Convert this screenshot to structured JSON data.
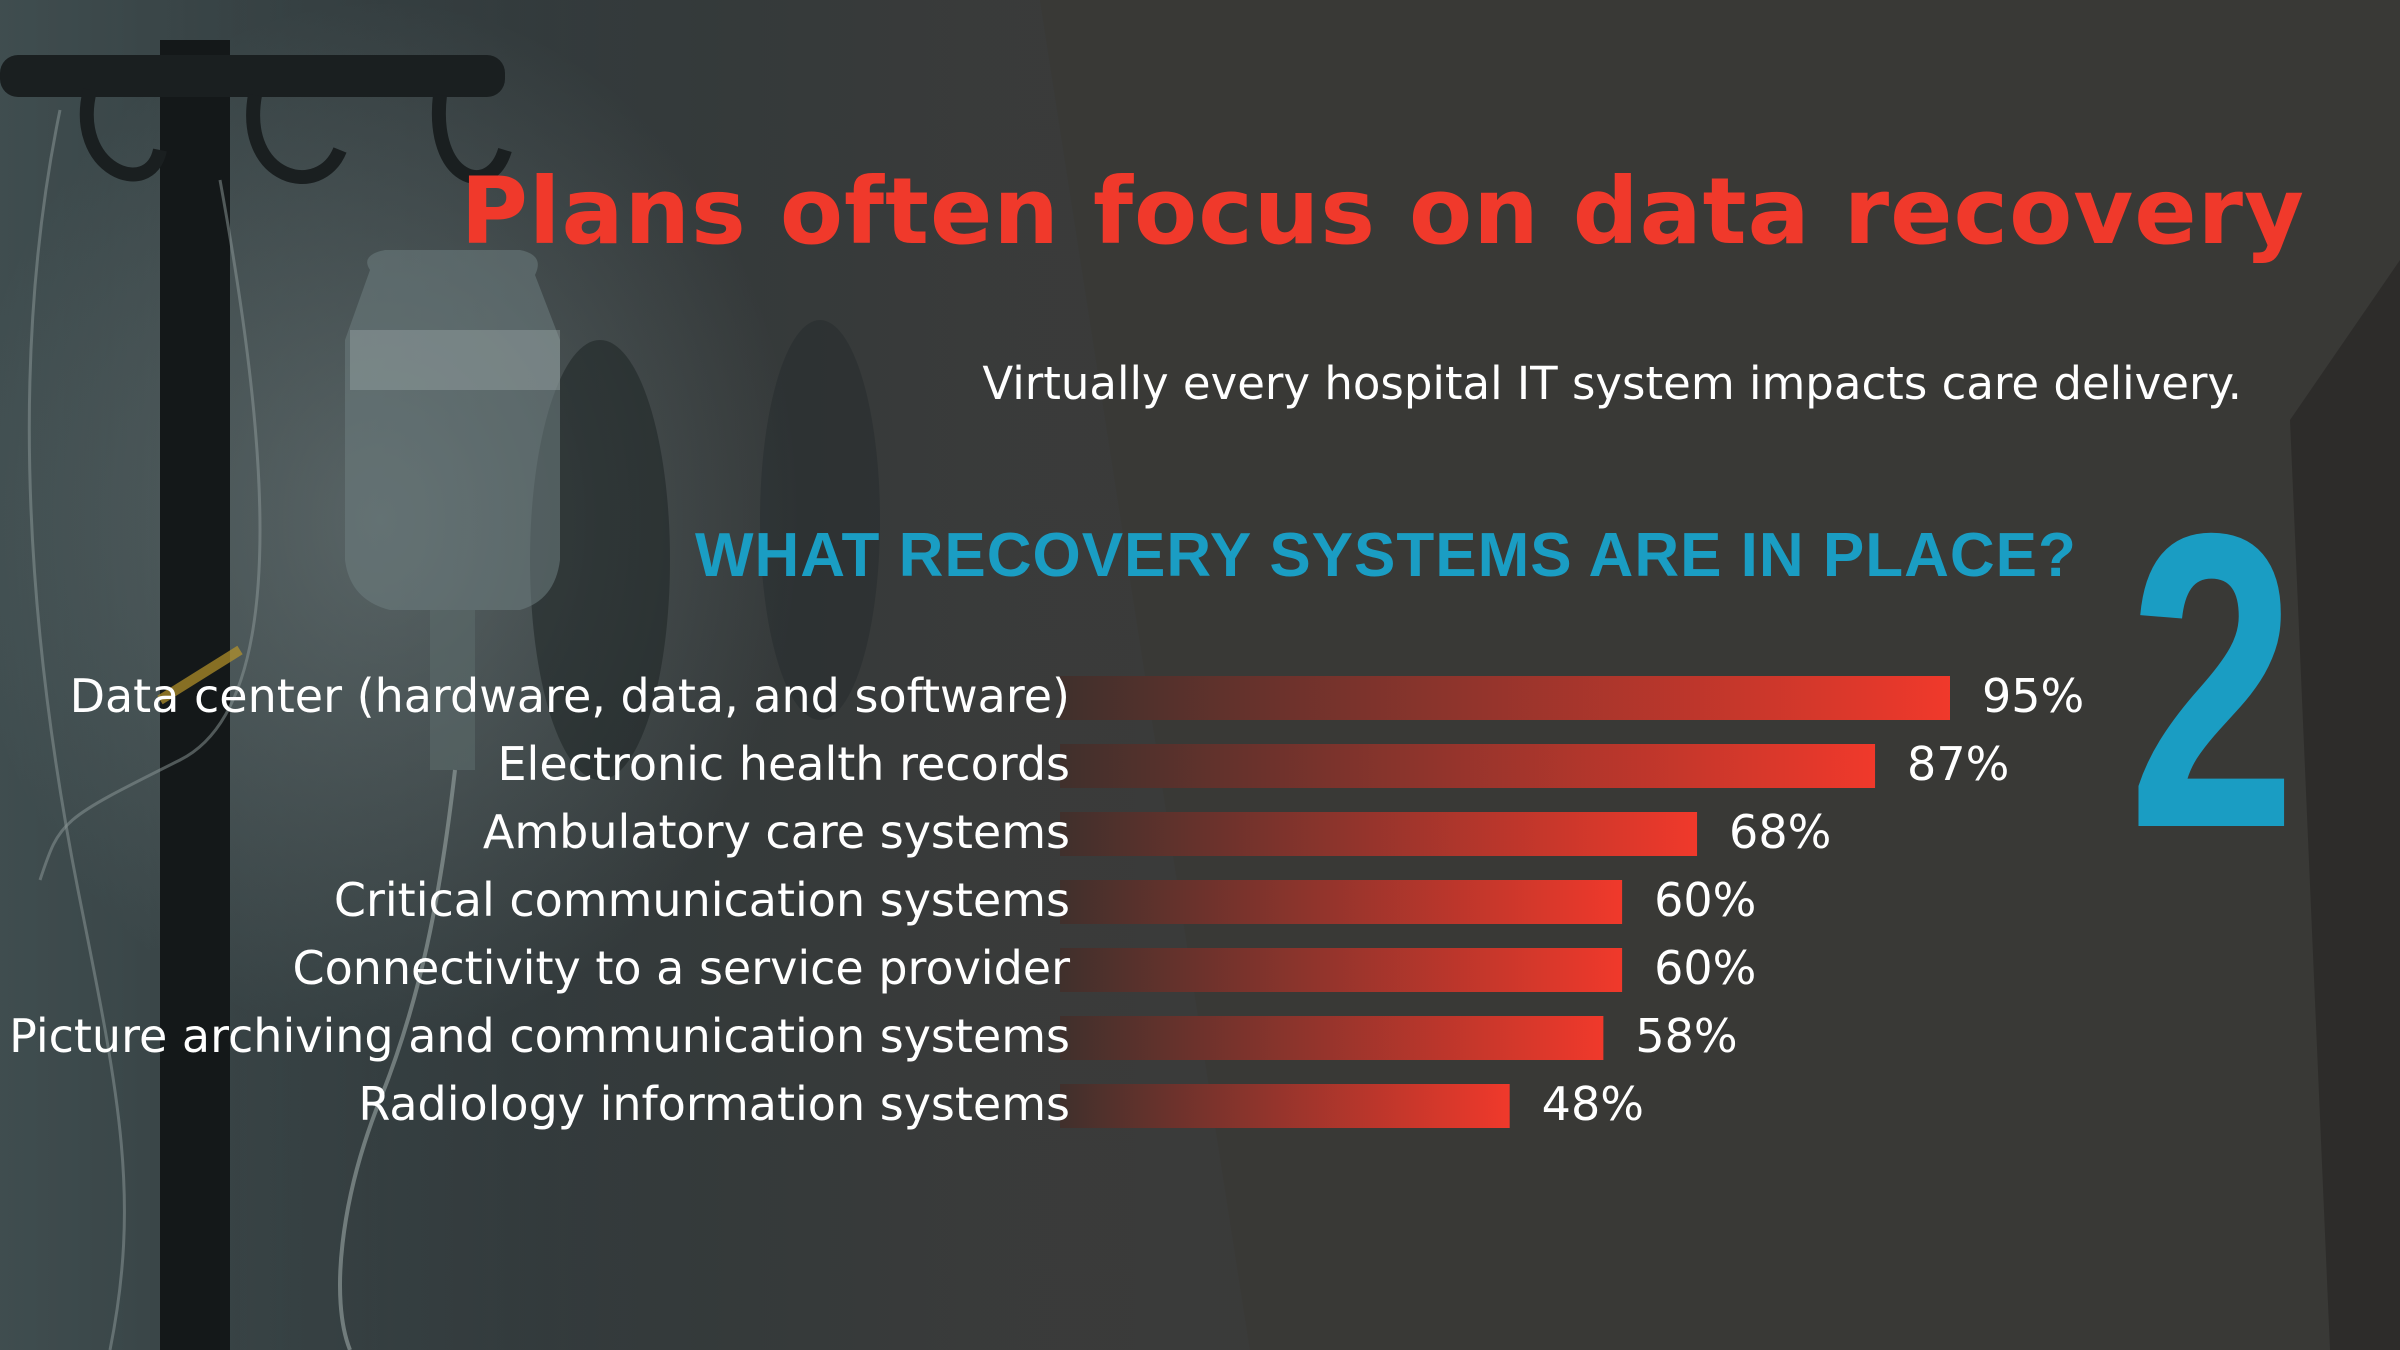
{
  "colors": {
    "title": "#f0392b",
    "question": "#1a9dc3",
    "slide_number": "#1a9dc3",
    "bar_start": "#40302c",
    "bar_end": "#f0392b",
    "text": "#ffffff"
  },
  "header": {
    "title": "Plans often focus on data recovery",
    "subtitle": "Virtually every hospital IT system impacts care delivery."
  },
  "slide_number": "2",
  "chart_data": {
    "type": "bar",
    "orientation": "horizontal",
    "title": "WHAT RECOVERY SYSTEMS ARE IN PLACE?",
    "categories": [
      "Data center (hardware, data, and software)",
      "Electronic health records",
      "Ambulatory care systems",
      "Critical communication systems",
      "Connectivity to a service provider",
      "Picture archiving and communication systems",
      "Radiology information systems"
    ],
    "values": [
      95,
      87,
      68,
      60,
      60,
      58,
      48
    ],
    "value_labels": [
      "95%",
      "87%",
      "68%",
      "60%",
      "60%",
      "58%",
      "48%"
    ],
    "xlim": [
      0,
      100
    ],
    "grid": false,
    "legend": "none"
  }
}
